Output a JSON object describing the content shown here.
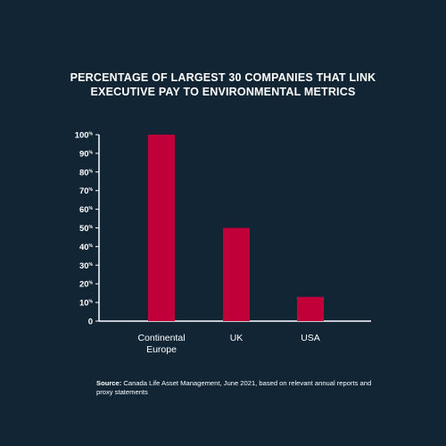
{
  "chart_data": {
    "type": "bar",
    "title_lines": [
      "PERCENTAGE OF LARGEST 30 COMPANIES THAT LINK",
      "EXECUTIVE PAY TO ENVIRONMENTAL METRICS"
    ],
    "categories": [
      [
        "Continental",
        "Europe"
      ],
      [
        "UK"
      ],
      [
        "USA"
      ]
    ],
    "values": [
      100,
      50,
      13
    ],
    "ylim": [
      0,
      100
    ],
    "yticks": [
      0,
      10,
      20,
      30,
      40,
      50,
      60,
      70,
      80,
      90,
      100
    ],
    "ytick_suffix": "%",
    "grid": false,
    "bar_color": "#c1003a",
    "axis_color": "#ffffff",
    "background": "#112535"
  },
  "source": {
    "label": "Source:",
    "text": "Canada Life Asset Management, June 2021, based on relevant annual reports and proxy statements"
  }
}
